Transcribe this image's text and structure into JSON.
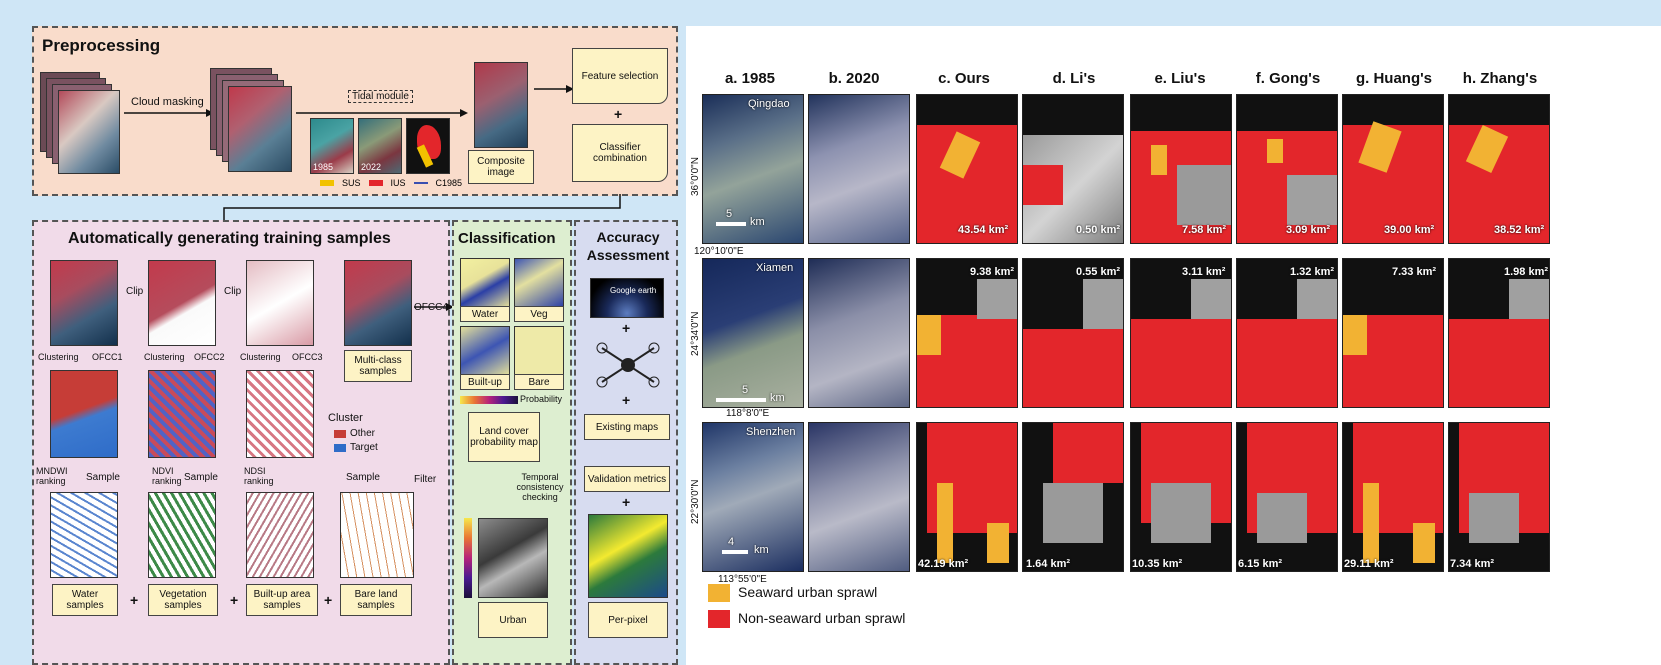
{
  "colors": {
    "background": "#cfe6f6",
    "seaward": "#f2b233",
    "nonseaward": "#e3262b",
    "preproc_bg": "#f9dccb",
    "samples_bg": "#f1dbe9",
    "class_bg": "#ddeed0",
    "acc_bg": "#d7dcf0"
  },
  "preprocessing": {
    "title": "Preprocessing",
    "cloud_masking": "Cloud masking",
    "tidal_module": "Tidal module",
    "year_a": "1985",
    "year_b": "2022",
    "composite": "Composite image",
    "feature_selection": "Feature selection",
    "classifier_combination": "Classifier combination",
    "plus": "+",
    "legend": [
      {
        "label": "SUS"
      },
      {
        "label": "IUS"
      },
      {
        "label": "C1985"
      }
    ]
  },
  "samples": {
    "title": "Automatically generating training samples",
    "clip1": "Clip",
    "clip2": "Clip",
    "clustering1": "Clustering",
    "ofcc1": "OFCC1",
    "clustering2": "Clustering",
    "ofcc2": "OFCC2",
    "clustering3": "Clustering",
    "ofcc3": "OFCC3",
    "multi_class": "Multi-class samples",
    "ofcc4": "OFCC4",
    "cluster": "Cluster",
    "other": "Other",
    "target": "Target",
    "filter": "Filter",
    "mndwi": "MNDWI ranking",
    "ndvi": "NDVI ranking",
    "ndsi": "NDSI ranking",
    "sample1": "Sample",
    "sample2": "Sample",
    "sample3": "Sample",
    "water_samples": "Water samples",
    "vegetation_samples": "Vegetation samples",
    "builtup_samples": "Built-up area samples",
    "bare_samples": "Bare land samples"
  },
  "classification": {
    "title": "Classification",
    "water": "Water",
    "veg": "Veg",
    "builtup": "Built-up",
    "bare": "Bare",
    "probability": "Probability",
    "lcpm": "Land cover probability map",
    "temporal": "Temporal consistency checking",
    "urban": "Urban"
  },
  "accuracy": {
    "title": "Accuracy Assessment",
    "google": "Google earth",
    "existing": "Existing maps",
    "validation": "Validation metrics",
    "perpixel": "Per-pixel"
  },
  "columns": [
    "a. 1985",
    "b. 2020",
    "c. Ours",
    "d. Li's",
    "e. Liu's",
    "f. Gong's",
    "g. Huang's",
    "h. Zhang's"
  ],
  "rows": [
    {
      "city": "Qingdao",
      "lat": "36°0'0\"N",
      "scale": "5",
      "km": "km",
      "areas": [
        "43.54 km²",
        "0.50 km²",
        "7.58 km²",
        "3.09 km²",
        "39.00 km²",
        "38.52 km²"
      ]
    },
    {
      "city": "Xiamen",
      "lat": "24°34'0\"N",
      "scale": "5",
      "km": "km",
      "lon_top": "120°10'0\"E",
      "areas": [
        "9.38 km²",
        "0.55 km²",
        "3.11 km²",
        "1.32 km²",
        "7.33 km²",
        "1.98 km²"
      ]
    },
    {
      "city": "Shenzhen",
      "lat": "22°30'0\"N",
      "scale": "4",
      "km": "km",
      "lon_top": "118°8'0\"E",
      "lon_bottom": "113°55'0\"E",
      "areas": [
        "42.19 km²",
        "1.64 km²",
        "10.35 km²",
        "6.15 km²",
        "29.11 km²",
        "7.34 km²"
      ]
    }
  ],
  "legend": [
    {
      "label": "Seaward urban sprawl",
      "color": "#f2b233"
    },
    {
      "label": "Non-seaward urban sprawl",
      "color": "#e3262b"
    }
  ]
}
